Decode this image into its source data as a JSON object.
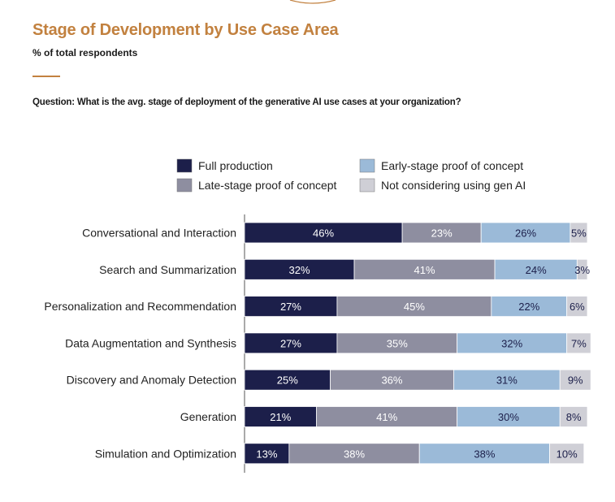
{
  "header": {
    "title": "Stage of Development by Use Case Area",
    "subtitle": "% of total respondents",
    "question": "Question: What is the avg. stage of deployment of the generative AI use cases at your organization?"
  },
  "colors": {
    "accent": "#c2813f",
    "full_production": "#1c1f4a",
    "late_stage": "#8e8ea0",
    "early_stage": "#9bbad8",
    "not_considering": "#cfcfd6"
  },
  "chart_data": {
    "type": "bar",
    "orientation": "horizontal",
    "stacked": true,
    "title": "Stage of Development by Use Case Area",
    "ylabel": "% of total respondents",
    "categories": [
      "Conversational and Interaction",
      "Search and Summarization",
      "Personalization and Recommendation",
      "Data Augmentation and Synthesis",
      "Discovery and Anomaly Detection",
      "Generation",
      "Simulation and Optimization"
    ],
    "series": [
      {
        "name": "Full production",
        "color": "#1c1f4a",
        "label_color": "#ffffff",
        "values": [
          46,
          32,
          27,
          27,
          25,
          21,
          13
        ]
      },
      {
        "name": "Late-stage proof of concept",
        "color": "#8e8ea0",
        "label_color": "#ffffff",
        "values": [
          23,
          41,
          45,
          35,
          36,
          41,
          38
        ]
      },
      {
        "name": "Early-stage proof of concept",
        "color": "#9bbad8",
        "label_color": "#1c1f4a",
        "values": [
          26,
          24,
          22,
          32,
          31,
          30,
          38
        ]
      },
      {
        "name": "Not considering using gen AI",
        "color": "#cfcfd6",
        "label_color": "#1c1f4a",
        "values": [
          5,
          3,
          6,
          7,
          9,
          8,
          10
        ]
      }
    ],
    "legend_order": [
      0,
      2,
      1,
      3
    ],
    "value_suffix": "%",
    "xlim": [
      0,
      100
    ],
    "legend_position": "top"
  }
}
